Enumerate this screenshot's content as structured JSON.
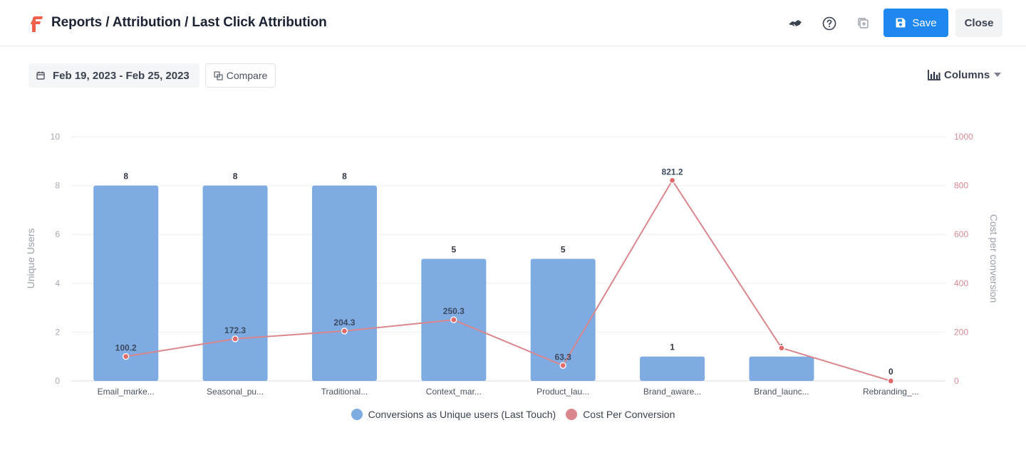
{
  "header": {
    "breadcrumb": "Reports / Attribution / Last Click Attribution",
    "save_label": "Save",
    "close_label": "Close"
  },
  "toolbar": {
    "date_range": "Feb 19, 2023 - Feb 25, 2023",
    "compare_label": "Compare",
    "columns_label": "Columns"
  },
  "colors": {
    "brand": "#f0604b",
    "primary": "#1e88f0",
    "bar": "#7eabe2",
    "line": "#d9868c"
  },
  "chart_data": {
    "type": "bar",
    "categories": [
      "Email_marke...",
      "Seasonal_pu...",
      "Traditional...",
      "Context_mar...",
      "Product_lau...",
      "Brand_aware...",
      "Brand_launc...",
      "Rebranding_..."
    ],
    "series": [
      {
        "name": "Conversions as Unique users (Last Touch)",
        "type": "bar",
        "axis": "left",
        "values": [
          8,
          8,
          8,
          5,
          5,
          1,
          1,
          0
        ],
        "labels": [
          "8",
          "8",
          "8",
          "5",
          "5",
          "1",
          "1",
          "0"
        ],
        "color": "#7eabe2"
      },
      {
        "name": "Cost Per Conversion",
        "type": "line",
        "axis": "right",
        "values": [
          100.2,
          172.3,
          204.3,
          250.3,
          63.3,
          821.2,
          135,
          0
        ],
        "labels": [
          "100.2",
          "172.3",
          "204.3",
          "250.3",
          "63.3",
          "821.2",
          "",
          ""
        ],
        "color": "#d9868c"
      }
    ],
    "ylabel": "Unique Users",
    "y2label": "Cost per conversion",
    "ylim": [
      0,
      10
    ],
    "y2lim": [
      0,
      1000
    ],
    "yticks": [
      0,
      2,
      4,
      6,
      8,
      10
    ],
    "y2ticks": [
      0,
      200,
      400,
      600,
      800,
      1000
    ],
    "grid": true,
    "legend_position": "bottom"
  }
}
